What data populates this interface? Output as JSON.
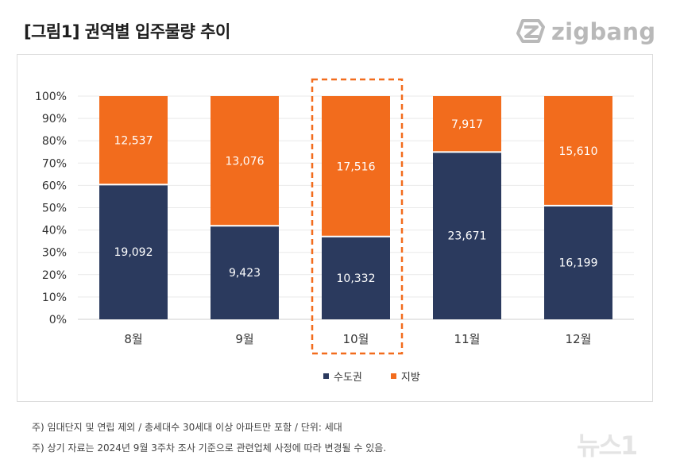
{
  "page": {
    "title": "[그림1] 권역별 입주물량 추이",
    "brand": "zigbang",
    "notes": [
      "주) 임대단지 및 연립 제외 / 총세대수 30세대 이상 아파트만 포함 / 단위: 세대",
      "주) 상기 자료는 2024년 9월 3주차 조사 기준으로 관련업체 사정에 따라 변경될 수 있음."
    ],
    "watermark": "뉴스1",
    "colors": {
      "capital": "#2b3a5e",
      "regional": "#f26c1d",
      "highlight": "#f26c1d",
      "grid": "#e9e9e9"
    }
  },
  "chart_data": {
    "type": "bar",
    "stacked": true,
    "normalized": true,
    "categories": [
      "8월",
      "9월",
      "10월",
      "11월",
      "12월"
    ],
    "series": [
      {
        "name": "수도권",
        "color": "#2b3a5e",
        "values": [
          19092,
          9423,
          10332,
          23671,
          16199
        ],
        "labels": [
          "19,092",
          "9,423",
          "10,332",
          "23,671",
          "16,199"
        ]
      },
      {
        "name": "지방",
        "color": "#f26c1d",
        "values": [
          12537,
          13076,
          17516,
          7917,
          15610
        ],
        "labels": [
          "12,537",
          "13,076",
          "17,516",
          "7,917",
          "15,610"
        ]
      }
    ],
    "yticks": [
      "0%",
      "10%",
      "20%",
      "30%",
      "40%",
      "50%",
      "60%",
      "70%",
      "80%",
      "90%",
      "100%"
    ],
    "ylim": [
      0,
      100
    ],
    "highlight_category": "10월",
    "legend_position": "bottom"
  }
}
